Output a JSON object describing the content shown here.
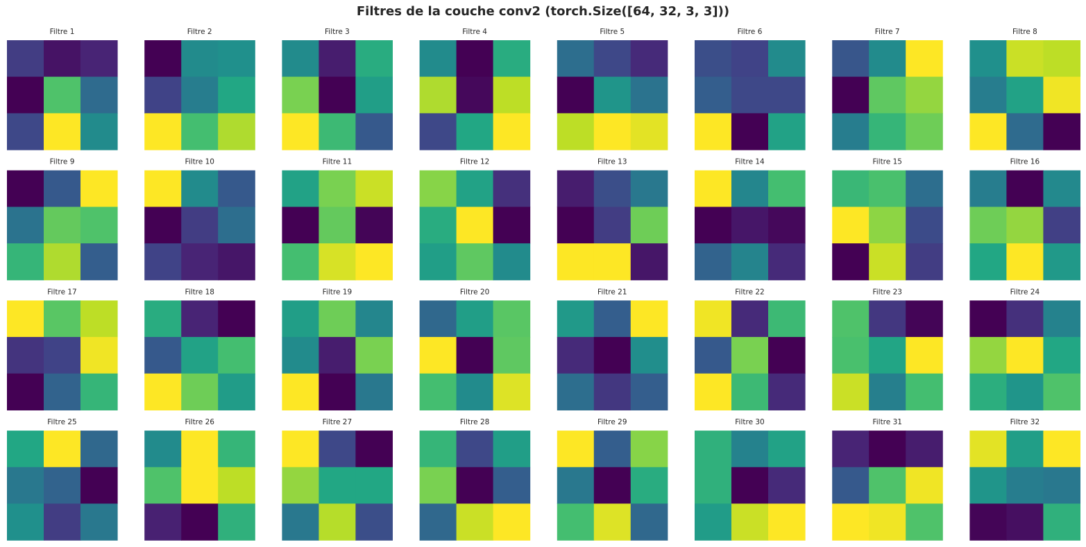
{
  "title": "Filtres de la couche conv2 (torch.Size([64, 32, 3, 3]))",
  "chart_data": {
    "type": "heatmap",
    "colormap": "viridis",
    "grid": false,
    "axes_visible": false,
    "layout": {
      "rows": 4,
      "cols": 8
    },
    "value_range": [
      0,
      1
    ],
    "panels": [
      {
        "title": "Filtre 1",
        "values": [
          [
            0.18,
            0.05,
            0.1
          ],
          [
            0.0,
            0.72,
            0.35
          ],
          [
            0.22,
            1.0,
            0.48
          ]
        ]
      },
      {
        "title": "Filtre 2",
        "values": [
          [
            0.0,
            0.48,
            0.5
          ],
          [
            0.2,
            0.42,
            0.6
          ],
          [
            1.0,
            0.7,
            0.88
          ]
        ]
      },
      {
        "title": "Filtre 3",
        "values": [
          [
            0.48,
            0.08,
            0.62
          ],
          [
            0.8,
            0.0,
            0.56
          ],
          [
            1.0,
            0.68,
            0.28
          ]
        ]
      },
      {
        "title": "Filtre 4",
        "values": [
          [
            0.48,
            0.0,
            0.62
          ],
          [
            0.88,
            0.02,
            0.9
          ],
          [
            0.22,
            0.6,
            1.0
          ]
        ]
      },
      {
        "title": "Filtre 5",
        "values": [
          [
            0.36,
            0.22,
            0.12
          ],
          [
            0.0,
            0.52,
            0.38
          ],
          [
            0.9,
            1.0,
            0.96
          ]
        ]
      },
      {
        "title": "Filtre 6",
        "values": [
          [
            0.24,
            0.2,
            0.48
          ],
          [
            0.3,
            0.22,
            0.22
          ],
          [
            1.0,
            0.0,
            0.58
          ]
        ]
      },
      {
        "title": "Filtre 7",
        "values": [
          [
            0.27,
            0.48,
            1.0
          ],
          [
            0.0,
            0.75,
            0.84
          ],
          [
            0.42,
            0.66,
            0.78
          ]
        ]
      },
      {
        "title": "Filtre 8",
        "values": [
          [
            0.5,
            0.92,
            0.9
          ],
          [
            0.42,
            0.58,
            0.98
          ],
          [
            1.0,
            0.35,
            0.0
          ]
        ]
      },
      {
        "title": "Filtre 9",
        "values": [
          [
            0.0,
            0.28,
            1.0
          ],
          [
            0.38,
            0.76,
            0.72
          ],
          [
            0.66,
            0.88,
            0.3
          ]
        ]
      },
      {
        "title": "Filtre 10",
        "values": [
          [
            1.0,
            0.48,
            0.28
          ],
          [
            0.0,
            0.18,
            0.36
          ],
          [
            0.2,
            0.1,
            0.06
          ]
        ]
      },
      {
        "title": "Filtre 11",
        "values": [
          [
            0.58,
            0.8,
            0.92
          ],
          [
            0.0,
            0.76,
            0.01
          ],
          [
            0.7,
            0.94,
            1.0
          ]
        ]
      },
      {
        "title": "Filtre 12",
        "values": [
          [
            0.82,
            0.58,
            0.14
          ],
          [
            0.62,
            1.0,
            0.0
          ],
          [
            0.56,
            0.75,
            0.48
          ]
        ]
      },
      {
        "title": "Filtre 13",
        "values": [
          [
            0.08,
            0.24,
            0.4
          ],
          [
            0.0,
            0.18,
            0.78
          ],
          [
            1.0,
            1.0,
            0.06
          ]
        ]
      },
      {
        "title": "Filtre 14",
        "values": [
          [
            1.0,
            0.46,
            0.7
          ],
          [
            0.0,
            0.06,
            0.02
          ],
          [
            0.32,
            0.45,
            0.12
          ]
        ]
      },
      {
        "title": "Filtre 15",
        "values": [
          [
            0.67,
            0.71,
            0.36
          ],
          [
            1.0,
            0.83,
            0.23
          ],
          [
            0.0,
            0.92,
            0.18
          ]
        ]
      },
      {
        "title": "Filtre 16",
        "values": [
          [
            0.42,
            0.0,
            0.47
          ],
          [
            0.78,
            0.84,
            0.19
          ],
          [
            0.6,
            1.0,
            0.54
          ]
        ]
      },
      {
        "title": "Filtre 17",
        "values": [
          [
            1.0,
            0.74,
            0.9
          ],
          [
            0.15,
            0.2,
            0.98
          ],
          [
            0.0,
            0.32,
            0.66
          ]
        ]
      },
      {
        "title": "Filtre 18",
        "values": [
          [
            0.62,
            0.1,
            0.0
          ],
          [
            0.28,
            0.58,
            0.7
          ],
          [
            1.0,
            0.78,
            0.55
          ]
        ]
      },
      {
        "title": "Filtre 19",
        "values": [
          [
            0.56,
            0.78,
            0.46
          ],
          [
            0.48,
            0.08,
            0.8
          ],
          [
            1.0,
            0.0,
            0.4
          ]
        ]
      },
      {
        "title": "Filtre 20",
        "values": [
          [
            0.34,
            0.56,
            0.74
          ],
          [
            1.0,
            0.0,
            0.75
          ],
          [
            0.7,
            0.48,
            0.95
          ]
        ]
      },
      {
        "title": "Filtre 21",
        "values": [
          [
            0.54,
            0.3,
            1.0
          ],
          [
            0.12,
            0.0,
            0.49
          ],
          [
            0.36,
            0.16,
            0.3
          ]
        ]
      },
      {
        "title": "Filtre 22",
        "values": [
          [
            0.98,
            0.12,
            0.68
          ],
          [
            0.28,
            0.8,
            0.0
          ],
          [
            1.0,
            0.68,
            0.12
          ]
        ]
      },
      {
        "title": "Filtre 23",
        "values": [
          [
            0.72,
            0.16,
            0.01
          ],
          [
            0.71,
            0.59,
            1.0
          ],
          [
            0.92,
            0.43,
            0.7
          ]
        ]
      },
      {
        "title": "Filtre 24",
        "values": [
          [
            0.0,
            0.14,
            0.44
          ],
          [
            0.84,
            1.0,
            0.6
          ],
          [
            0.63,
            0.52,
            0.72
          ]
        ]
      },
      {
        "title": "Filtre 25",
        "values": [
          [
            0.6,
            1.0,
            0.34
          ],
          [
            0.4,
            0.32,
            0.0
          ],
          [
            0.5,
            0.18,
            0.4
          ]
        ]
      },
      {
        "title": "Filtre 26",
        "values": [
          [
            0.48,
            1.0,
            0.66
          ],
          [
            0.72,
            1.0,
            0.9
          ],
          [
            0.09,
            0.0,
            0.64
          ]
        ]
      },
      {
        "title": "Filtre 27",
        "values": [
          [
            1.0,
            0.22,
            0.0
          ],
          [
            0.84,
            0.6,
            0.6
          ],
          [
            0.4,
            0.89,
            0.24
          ]
        ]
      },
      {
        "title": "Filtre 28",
        "values": [
          [
            0.66,
            0.22,
            0.56
          ],
          [
            0.8,
            0.0,
            0.3
          ],
          [
            0.34,
            0.92,
            1.0
          ]
        ]
      },
      {
        "title": "Filtre 29",
        "values": [
          [
            1.0,
            0.3,
            0.82
          ],
          [
            0.4,
            0.0,
            0.62
          ],
          [
            0.7,
            0.95,
            0.34
          ]
        ]
      },
      {
        "title": "Filtre 30",
        "values": [
          [
            0.64,
            0.44,
            0.58
          ],
          [
            0.64,
            0.0,
            0.12
          ],
          [
            0.55,
            0.92,
            1.0
          ]
        ]
      },
      {
        "title": "Filtre 31",
        "values": [
          [
            0.1,
            0.0,
            0.08
          ],
          [
            0.28,
            0.72,
            0.98
          ],
          [
            1.0,
            0.98,
            0.72
          ]
        ]
      },
      {
        "title": "Filtre 32",
        "values": [
          [
            0.96,
            0.56,
            1.0
          ],
          [
            0.52,
            0.42,
            0.4
          ],
          [
            0.01,
            0.04,
            0.64
          ]
        ]
      }
    ]
  }
}
